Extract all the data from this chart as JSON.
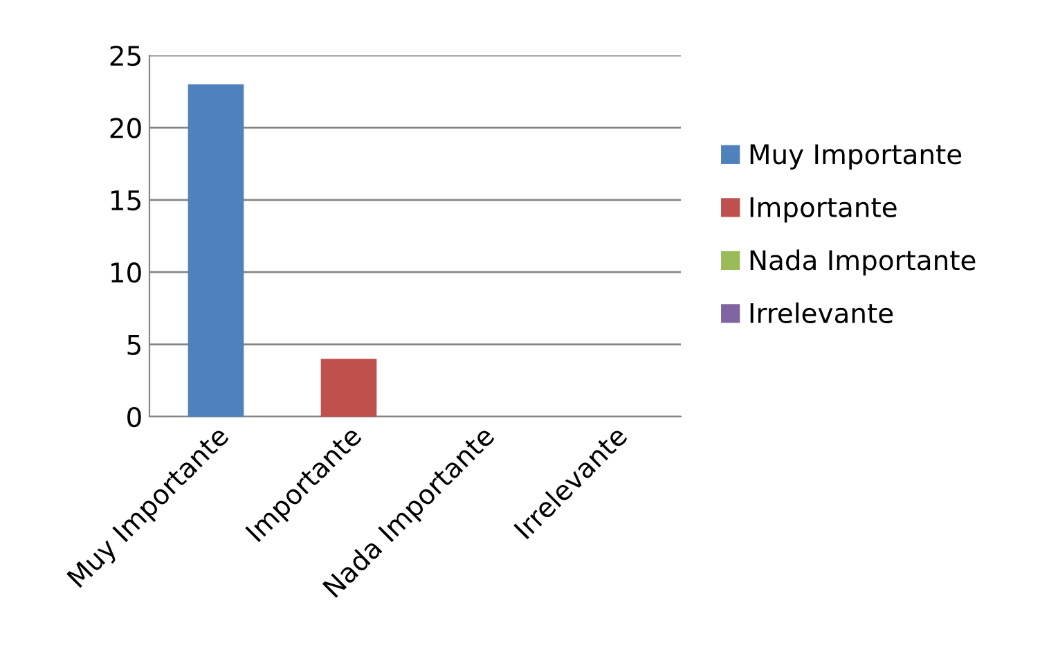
{
  "chart_data": {
    "type": "bar",
    "categories": [
      "Muy Importante",
      "Importante",
      "Nada Importante",
      "Irrelevante"
    ],
    "series": [
      {
        "name": "Muy Importante",
        "color": "#4f81bd",
        "values": [
          23,
          null,
          null,
          null
        ]
      },
      {
        "name": "Importante",
        "color": "#c0504d",
        "values": [
          null,
          4,
          null,
          null
        ]
      },
      {
        "name": "Nada Importante",
        "color": "#9bbb59",
        "values": [
          null,
          null,
          0,
          null
        ]
      },
      {
        "name": "Irrelevante",
        "color": "#8064a2",
        "values": [
          null,
          null,
          null,
          0
        ]
      }
    ],
    "ylim": [
      0,
      25
    ],
    "yticks": [
      0,
      5,
      10,
      15,
      20,
      25
    ],
    "grid": "y",
    "legend": "right"
  }
}
